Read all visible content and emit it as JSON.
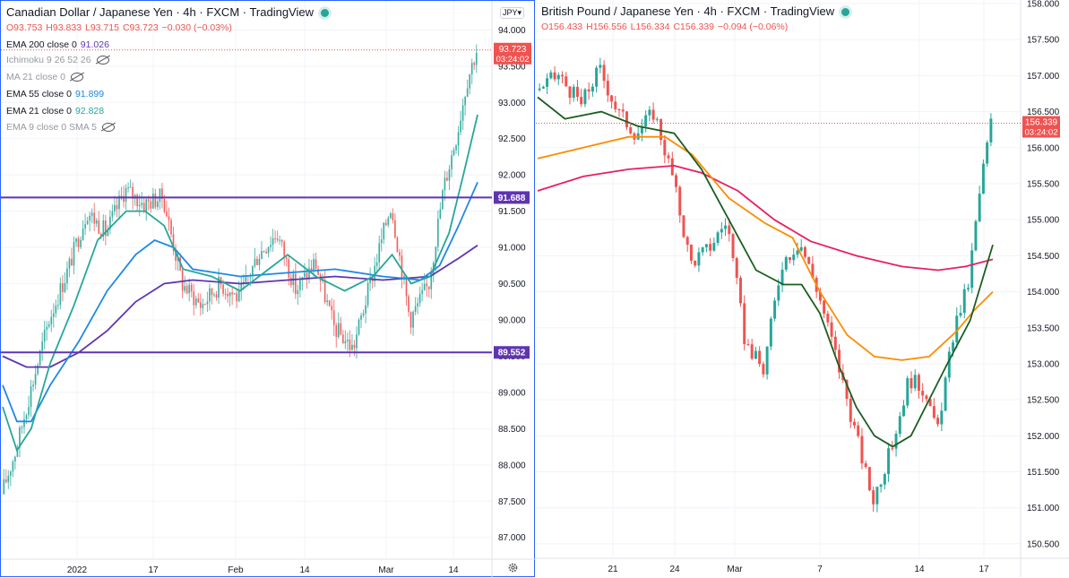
{
  "chart_data": [
    {
      "type": "candlestick",
      "title": "Canadian Dollar / Japanese Yen · 4h · FXCM · TradingView",
      "ohlc": {
        "o": "O93.753",
        "h": "H93.833",
        "l": "L93.715",
        "c": "C93.723",
        "chg": "−0.030 (−0.03%)"
      },
      "currency": "JPY",
      "ylim": [
        86.7,
        94.4
      ],
      "yticks": [
        94.0,
        93.5,
        93.0,
        92.5,
        92.0,
        91.5,
        91.0,
        90.5,
        90.0,
        89.5,
        89.0,
        88.5,
        88.0,
        87.5,
        87.0
      ],
      "ytick_labels": [
        "94.000",
        "93.500",
        "93.000",
        "92.500",
        "92.000",
        "91.500",
        "91.000",
        "90.500",
        "90.000",
        "89.500",
        "89.000",
        "88.500",
        "88.000",
        "87.500",
        "87.000"
      ],
      "xtick_labels": [
        "2022",
        "17",
        "Feb",
        "14",
        "Mar",
        "14"
      ],
      "last_price": 93.723,
      "last_price_label": "93.723",
      "countdown": "03:24:02",
      "horizontal_lines": [
        {
          "value": 91.688,
          "label": "91.688",
          "color": "#5e35b1"
        },
        {
          "value": 89.552,
          "label": "89.552",
          "color": "#5e35b1"
        }
      ],
      "legend": [
        {
          "name": "EMA 200 close 0",
          "value": "91.026",
          "color": "#5e35b1",
          "visible": true
        },
        {
          "name": "Ichimoku 9 26 52 26",
          "value": "",
          "visible": false
        },
        {
          "name": "MA 21 close 0",
          "value": "",
          "visible": false
        },
        {
          "name": "EMA 55 close 0",
          "value": "91.899",
          "color": "#1e88e5",
          "visible": true
        },
        {
          "name": "EMA 21 close 0",
          "value": "92.828",
          "color": "#26a69a",
          "visible": true
        },
        {
          "name": "EMA 9 close 0 SMA 5",
          "value": "",
          "visible": false
        }
      ],
      "series": [
        {
          "name": "EMA 200",
          "color": "#5e35b1",
          "points": [
            [
              0,
              89.5
            ],
            [
              0.05,
              89.35
            ],
            [
              0.1,
              89.35
            ],
            [
              0.16,
              89.55
            ],
            [
              0.22,
              89.85
            ],
            [
              0.28,
              90.25
            ],
            [
              0.34,
              90.5
            ],
            [
              0.4,
              90.55
            ],
            [
              0.5,
              90.5
            ],
            [
              0.6,
              90.55
            ],
            [
              0.7,
              90.6
            ],
            [
              0.8,
              90.55
            ],
            [
              0.9,
              90.6
            ],
            [
              0.96,
              90.85
            ],
            [
              1.0,
              91.03
            ]
          ]
        },
        {
          "name": "EMA 55",
          "color": "#1e88e5",
          "points": [
            [
              0,
              89.1
            ],
            [
              0.03,
              88.6
            ],
            [
              0.06,
              88.6
            ],
            [
              0.1,
              89.1
            ],
            [
              0.16,
              89.7
            ],
            [
              0.22,
              90.4
            ],
            [
              0.28,
              90.9
            ],
            [
              0.32,
              91.1
            ],
            [
              0.36,
              91.0
            ],
            [
              0.4,
              90.7
            ],
            [
              0.5,
              90.6
            ],
            [
              0.6,
              90.65
            ],
            [
              0.7,
              90.7
            ],
            [
              0.8,
              90.6
            ],
            [
              0.88,
              90.55
            ],
            [
              0.92,
              90.75
            ],
            [
              0.96,
              91.3
            ],
            [
              1.0,
              91.9
            ]
          ]
        },
        {
          "name": "EMA 21",
          "color": "#26a69a",
          "points": [
            [
              0,
              88.8
            ],
            [
              0.03,
              88.2
            ],
            [
              0.06,
              88.5
            ],
            [
              0.1,
              89.4
            ],
            [
              0.15,
              90.2
            ],
            [
              0.2,
              91.1
            ],
            [
              0.26,
              91.5
            ],
            [
              0.3,
              91.5
            ],
            [
              0.34,
              91.3
            ],
            [
              0.38,
              90.7
            ],
            [
              0.44,
              90.6
            ],
            [
              0.5,
              90.4
            ],
            [
              0.56,
              90.7
            ],
            [
              0.6,
              90.9
            ],
            [
              0.66,
              90.6
            ],
            [
              0.72,
              90.4
            ],
            [
              0.78,
              90.6
            ],
            [
              0.82,
              90.9
            ],
            [
              0.86,
              90.5
            ],
            [
              0.9,
              90.6
            ],
            [
              0.94,
              91.2
            ],
            [
              0.97,
              92.0
            ],
            [
              1.0,
              92.83
            ]
          ]
        },
        {
          "name": "Price",
          "color": "#888888",
          "points": [
            [
              0,
              87.6
            ],
            [
              0.03,
              88.2
            ],
            [
              0.06,
              89.0
            ],
            [
              0.1,
              90.0
            ],
            [
              0.14,
              90.7
            ],
            [
              0.18,
              91.5
            ],
            [
              0.22,
              91.2
            ],
            [
              0.26,
              91.8
            ],
            [
              0.3,
              91.6
            ],
            [
              0.34,
              91.7
            ],
            [
              0.38,
              90.5
            ],
            [
              0.42,
              90.2
            ],
            [
              0.46,
              90.5
            ],
            [
              0.5,
              90.3
            ],
            [
              0.54,
              90.9
            ],
            [
              0.58,
              91.2
            ],
            [
              0.62,
              90.4
            ],
            [
              0.66,
              90.8
            ],
            [
              0.7,
              89.9
            ],
            [
              0.74,
              89.6
            ],
            [
              0.78,
              90.6
            ],
            [
              0.82,
              91.6
            ],
            [
              0.86,
              90.0
            ],
            [
              0.9,
              90.5
            ],
            [
              0.93,
              91.8
            ],
            [
              0.96,
              92.6
            ],
            [
              0.98,
              93.3
            ],
            [
              1.0,
              93.72
            ]
          ]
        }
      ]
    },
    {
      "type": "candlestick",
      "title": "British Pound / Japanese Yen · 4h · FXCM · TradingView",
      "ohlc": {
        "o": "O156.433",
        "h": "H156.556",
        "l": "L156.334",
        "c": "C156.339",
        "chg": "−0.094 (−0.06%)"
      },
      "ylim": [
        150.3,
        158.05
      ],
      "yticks": [
        158.0,
        157.5,
        157.0,
        156.5,
        156.0,
        155.5,
        155.0,
        154.5,
        154.0,
        153.5,
        153.0,
        152.5,
        152.0,
        151.5,
        151.0,
        150.5
      ],
      "ytick_labels": [
        "158.000",
        "157.500",
        "157.000",
        "156.500",
        "156.000",
        "155.500",
        "155.000",
        "154.500",
        "154.000",
        "153.500",
        "153.000",
        "152.500",
        "152.000",
        "151.500",
        "151.000",
        "150.500"
      ],
      "xtick_labels": [
        "21",
        "24",
        "Mar",
        "7",
        "14",
        "17"
      ],
      "last_price": 156.339,
      "last_price_label": "156.339",
      "countdown": "03:24:02",
      "series": [
        {
          "name": "EMA 200",
          "color": "#e91e63",
          "points": [
            [
              0,
              155.4
            ],
            [
              0.1,
              155.6
            ],
            [
              0.2,
              155.7
            ],
            [
              0.3,
              155.75
            ],
            [
              0.36,
              155.65
            ],
            [
              0.44,
              155.4
            ],
            [
              0.52,
              155.0
            ],
            [
              0.6,
              154.7
            ],
            [
              0.7,
              154.5
            ],
            [
              0.8,
              154.35
            ],
            [
              0.88,
              154.3
            ],
            [
              0.94,
              154.35
            ],
            [
              1.0,
              154.45
            ]
          ]
        },
        {
          "name": "EMA 55",
          "color": "#fb8c00",
          "points": [
            [
              0,
              155.85
            ],
            [
              0.1,
              156.0
            ],
            [
              0.2,
              156.15
            ],
            [
              0.28,
              156.15
            ],
            [
              0.34,
              155.9
            ],
            [
              0.42,
              155.3
            ],
            [
              0.5,
              154.95
            ],
            [
              0.56,
              154.75
            ],
            [
              0.62,
              154.0
            ],
            [
              0.68,
              153.4
            ],
            [
              0.74,
              153.1
            ],
            [
              0.8,
              153.05
            ],
            [
              0.86,
              153.1
            ],
            [
              0.92,
              153.45
            ],
            [
              0.96,
              153.75
            ],
            [
              1.0,
              154.0
            ]
          ]
        },
        {
          "name": "EMA 21",
          "color": "#1b5e20",
          "points": [
            [
              0,
              156.7
            ],
            [
              0.06,
              156.4
            ],
            [
              0.14,
              156.5
            ],
            [
              0.22,
              156.3
            ],
            [
              0.3,
              156.2
            ],
            [
              0.36,
              155.7
            ],
            [
              0.42,
              155.0
            ],
            [
              0.48,
              154.3
            ],
            [
              0.54,
              154.1
            ],
            [
              0.58,
              154.1
            ],
            [
              0.62,
              153.7
            ],
            [
              0.66,
              153.0
            ],
            [
              0.7,
              152.4
            ],
            [
              0.74,
              152.0
            ],
            [
              0.78,
              151.85
            ],
            [
              0.82,
              152.0
            ],
            [
              0.86,
              152.5
            ],
            [
              0.9,
              153.0
            ],
            [
              0.95,
              153.6
            ],
            [
              1.0,
              154.65
            ]
          ]
        },
        {
          "name": "Price",
          "color": "#888888",
          "points": [
            [
              0,
              156.8
            ],
            [
              0.05,
              157.0
            ],
            [
              0.1,
              156.6
            ],
            [
              0.14,
              157.1
            ],
            [
              0.18,
              156.5
            ],
            [
              0.22,
              156.2
            ],
            [
              0.26,
              156.5
            ],
            [
              0.3,
              155.6
            ],
            [
              0.34,
              154.4
            ],
            [
              0.38,
              154.6
            ],
            [
              0.42,
              155.0
            ],
            [
              0.46,
              153.3
            ],
            [
              0.5,
              152.9
            ],
            [
              0.54,
              154.4
            ],
            [
              0.58,
              154.7
            ],
            [
              0.62,
              154.0
            ],
            [
              0.66,
              153.1
            ],
            [
              0.7,
              152.1
            ],
            [
              0.74,
              151.1
            ],
            [
              0.78,
              151.8
            ],
            [
              0.82,
              152.8
            ],
            [
              0.86,
              152.6
            ],
            [
              0.88,
              152.0
            ],
            [
              0.92,
              153.5
            ],
            [
              0.95,
              154.1
            ],
            [
              0.98,
              155.6
            ],
            [
              1.0,
              156.34
            ]
          ]
        }
      ]
    }
  ]
}
